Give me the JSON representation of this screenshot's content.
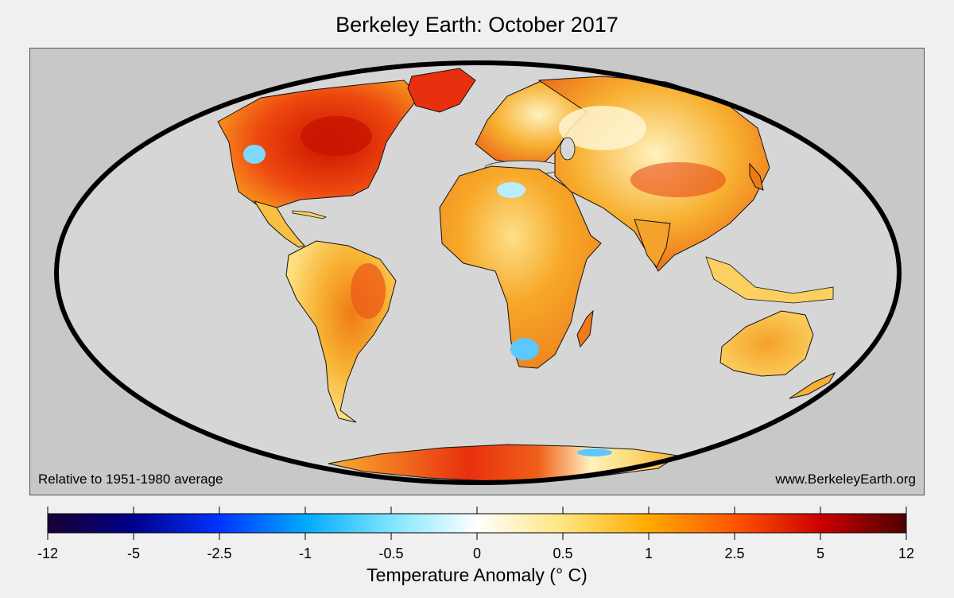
{
  "title": "Berkeley Earth: October 2017",
  "notes": {
    "baseline": "Relative to 1951-1980 average",
    "website": "www.BerkeleyEarth.org"
  },
  "map": {
    "projection": "Mollweide",
    "ocean_color": "#d6d6d6",
    "outside_color": "#c8c8c8",
    "outline_color": "#000000"
  },
  "colorbar": {
    "label": "Temperature Anomaly (° C)",
    "ticks": [
      "-12",
      "-5",
      "-2.5",
      "-1",
      "-0.5",
      "0",
      "0.5",
      "1",
      "2.5",
      "5",
      "12"
    ],
    "colors": [
      "#1a0033",
      "#00008b",
      "#0033ff",
      "#00aaff",
      "#7fe5ff",
      "#ffffff",
      "#ffe57f",
      "#ffaa00",
      "#ff5500",
      "#cc0000",
      "#4d0000"
    ]
  }
}
